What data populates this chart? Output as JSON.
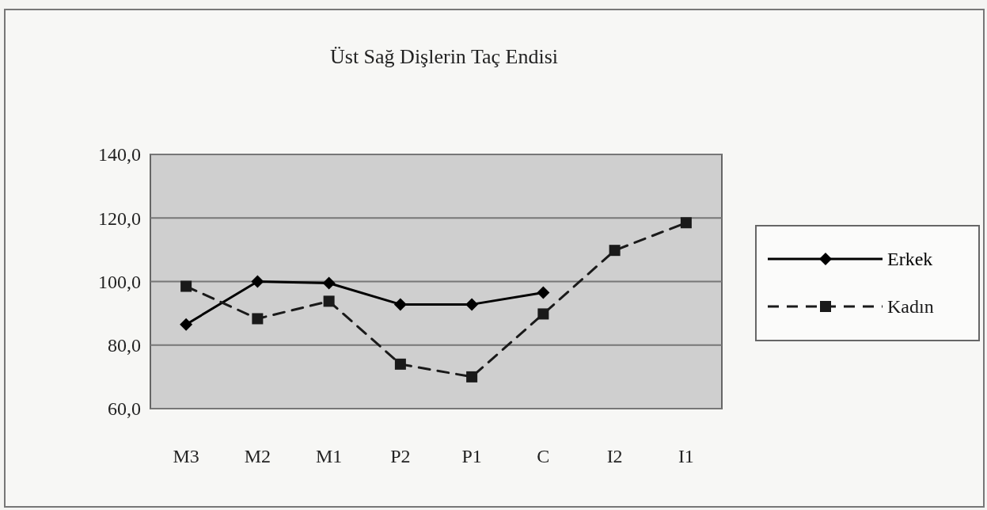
{
  "chart_data": {
    "type": "line",
    "title": "Üst Sağ Dişlerin Taç Endisi",
    "categories": [
      "M3",
      "M2",
      "M1",
      "P2",
      "P1",
      "C",
      "I2",
      "I1"
    ],
    "series": [
      {
        "name": "Erkek",
        "color": "#000000",
        "marker": "diamond",
        "line_style": "solid",
        "values": [
          86.5,
          100,
          99.5,
          92.8,
          92.8,
          96.5,
          null,
          null
        ]
      },
      {
        "name": "Kadın",
        "color": "#1a1a1a",
        "marker": "square",
        "line_style": "dashed",
        "values": [
          98.5,
          88.3,
          93.8,
          74,
          70,
          89.8,
          109.8,
          118.5
        ]
      }
    ],
    "ylim": [
      60,
      140
    ],
    "yticks": [
      {
        "value": 60,
        "label": "60,0"
      },
      {
        "value": 80,
        "label": "80,0"
      },
      {
        "value": 100,
        "label": "100,0"
      },
      {
        "value": 120,
        "label": "120,0"
      },
      {
        "value": 140,
        "label": "140,0"
      }
    ],
    "grid": "y",
    "legend": "right"
  }
}
